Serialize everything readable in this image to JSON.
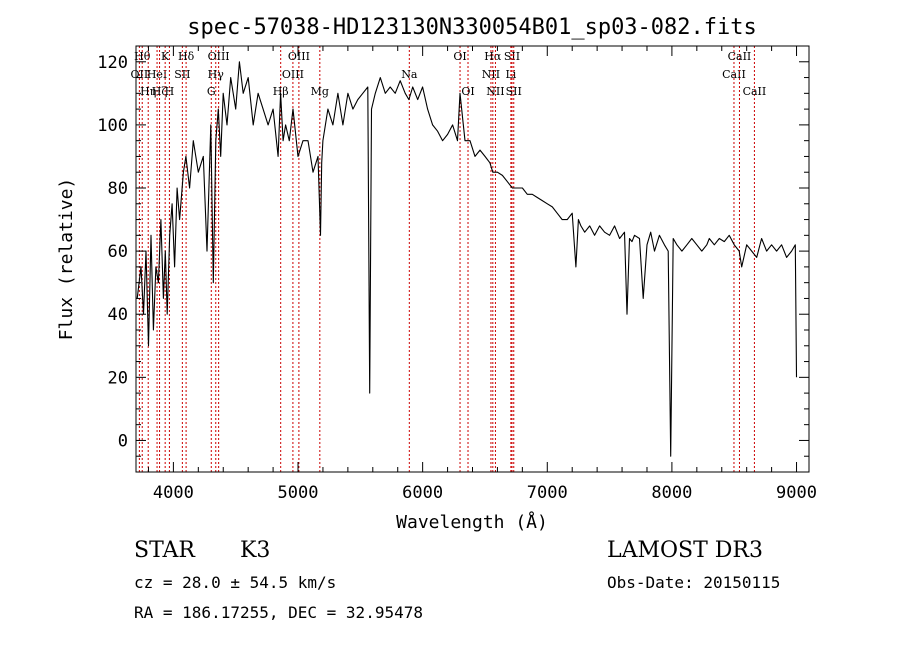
{
  "chart_data": {
    "type": "line",
    "title": "spec-57038-HD123130N330054B01_sp03-082.fits",
    "xlabel": "Wavelength (Å)",
    "ylabel": "Flux (relative)",
    "xlim": [
      3700,
      9100
    ],
    "ylim": [
      -10,
      125
    ],
    "x_ticks": [
      4000,
      5000,
      6000,
      7000,
      8000,
      9000
    ],
    "y_ticks": [
      0,
      20,
      40,
      60,
      80,
      100,
      120
    ],
    "grid": false,
    "line_color": "#000000",
    "marker_color": "#cc0000",
    "series": [
      {
        "x": [
          3710,
          3740,
          3760,
          3780,
          3800,
          3820,
          3840,
          3860,
          3880,
          3900,
          3920,
          3935,
          3950,
          3970,
          3990,
          4010,
          4030,
          4050,
          4080,
          4100,
          4130,
          4160,
          4200,
          4240,
          4270,
          4300,
          4320,
          4340,
          4360,
          4380,
          4400,
          4430,
          4460,
          4500,
          4530,
          4560,
          4600,
          4640,
          4680,
          4720,
          4760,
          4800,
          4840,
          4860,
          4880,
          4900,
          4930,
          4960,
          5000,
          5040,
          5080,
          5120,
          5160,
          5180,
          5190,
          5200,
          5240,
          5280,
          5320,
          5360,
          5400,
          5440,
          5480,
          5520,
          5560,
          5575,
          5590,
          5620,
          5660,
          5700,
          5740,
          5780,
          5820,
          5860,
          5890,
          5920,
          5960,
          6000,
          6040,
          6080,
          6120,
          6160,
          6200,
          6240,
          6280,
          6300,
          6340,
          6380,
          6420,
          6460,
          6500,
          6540,
          6563,
          6600,
          6640,
          6680,
          6720,
          6760,
          6800,
          6840,
          6880,
          6920,
          6960,
          7000,
          7040,
          7080,
          7120,
          7160,
          7200,
          7230,
          7250,
          7270,
          7300,
          7340,
          7380,
          7420,
          7460,
          7500,
          7540,
          7580,
          7620,
          7640,
          7660,
          7680,
          7700,
          7740,
          7770,
          7800,
          7830,
          7860,
          7900,
          7940,
          7970,
          7990,
          8010,
          8040,
          8080,
          8120,
          8160,
          8200,
          8240,
          8280,
          8300,
          8340,
          8380,
          8420,
          8460,
          8500,
          8540,
          8560,
          8600,
          8640,
          8680,
          8720,
          8760,
          8800,
          8840,
          8880,
          8920,
          8960,
          8990,
          9000
        ],
        "y": [
          45,
          55,
          40,
          60,
          30,
          65,
          35,
          55,
          50,
          70,
          45,
          60,
          40,
          65,
          75,
          55,
          80,
          70,
          85,
          90,
          80,
          95,
          85,
          90,
          60,
          100,
          50,
          95,
          105,
          90,
          110,
          100,
          115,
          105,
          120,
          110,
          115,
          100,
          110,
          105,
          100,
          105,
          90,
          110,
          95,
          100,
          95,
          105,
          90,
          95,
          95,
          85,
          90,
          65,
          88,
          95,
          105,
          100,
          110,
          100,
          110,
          105,
          108,
          110,
          112,
          15,
          105,
          110,
          115,
          110,
          112,
          110,
          114,
          110,
          108,
          112,
          108,
          112,
          105,
          100,
          98,
          95,
          97,
          100,
          95,
          110,
          95,
          95,
          90,
          92,
          90,
          88,
          85,
          85,
          84,
          82,
          80,
          80,
          80,
          78,
          78,
          77,
          76,
          75,
          74,
          72,
          70,
          70,
          72,
          55,
          70,
          68,
          66,
          68,
          65,
          68,
          66,
          65,
          68,
          64,
          66,
          40,
          64,
          63,
          65,
          64,
          45,
          62,
          66,
          60,
          65,
          62,
          60,
          -5,
          64,
          62,
          60,
          62,
          64,
          62,
          60,
          62,
          64,
          62,
          64,
          63,
          65,
          62,
          60,
          55,
          62,
          60,
          58,
          64,
          60,
          62,
          60,
          62,
          58,
          60,
          62,
          20
        ]
      }
    ],
    "line_markers": [
      {
        "x": 3750,
        "label": "Hθ",
        "row": 0
      },
      {
        "x": 3798,
        "label": "Hη",
        "row": 2
      },
      {
        "x": 3727,
        "label": "OII",
        "row": 1
      },
      {
        "x": 3869,
        "label": "HeI",
        "row": 1
      },
      {
        "x": 3889,
        "label": "Hζ",
        "row": 2
      },
      {
        "x": 3934,
        "label": "K",
        "row": 0
      },
      {
        "x": 3968,
        "label": "H",
        "row": 2
      },
      {
        "x": 4072,
        "label": "SII",
        "row": 1
      },
      {
        "x": 4102,
        "label": "Hδ",
        "row": 0
      },
      {
        "x": 4304,
        "label": "G",
        "row": 2
      },
      {
        "x": 4340,
        "label": "Hγ",
        "row": 1
      },
      {
        "x": 4363,
        "label": "OIII",
        "row": 0
      },
      {
        "x": 4861,
        "label": "Hβ",
        "row": 2
      },
      {
        "x": 4959,
        "label": "OIII",
        "row": 1
      },
      {
        "x": 5007,
        "label": "OIII",
        "row": 0
      },
      {
        "x": 5175,
        "label": "Mg",
        "row": 2
      },
      {
        "x": 5893,
        "label": "Na",
        "row": 1
      },
      {
        "x": 6300,
        "label": "OI",
        "row": 0
      },
      {
        "x": 6364,
        "label": "OI",
        "row": 2
      },
      {
        "x": 6548,
        "label": "NII",
        "row": 1
      },
      {
        "x": 6563,
        "label": "Hα",
        "row": 0
      },
      {
        "x": 6584,
        "label": "NII",
        "row": 2
      },
      {
        "x": 6708,
        "label": "Li",
        "row": 1
      },
      {
        "x": 6717,
        "label": "SII",
        "row": 0
      },
      {
        "x": 6731,
        "label": "SII",
        "row": 2
      },
      {
        "x": 8498,
        "label": "CaII",
        "row": 1
      },
      {
        "x": 8542,
        "label": "CaII",
        "row": 0
      },
      {
        "x": 8662,
        "label": "CaII",
        "row": 2
      }
    ]
  },
  "info": {
    "object_class": "STAR",
    "subclass": "K3",
    "survey": "LAMOST DR3",
    "cz": "cz = 28.0 ± 54.5 km/s",
    "obs_date": "Obs-Date: 20150115",
    "coords": "RA = 186.17255, DEC =  32.95478"
  }
}
